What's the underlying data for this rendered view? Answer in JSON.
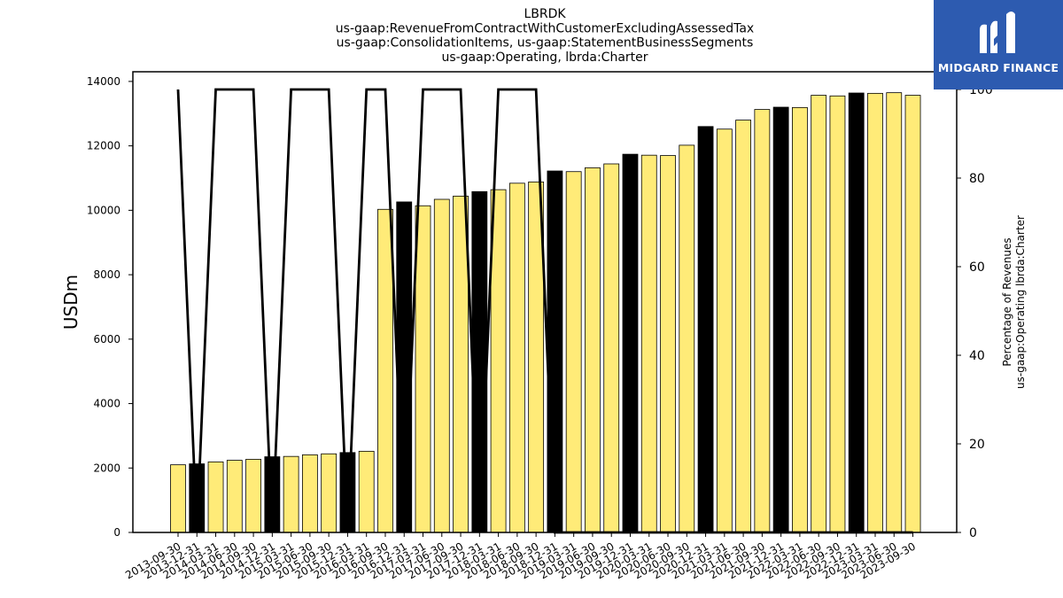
{
  "chart_data": {
    "type": "bar",
    "title_lines": [
      "LBRDK",
      "us-gaap:RevenueFromContractWithCustomerExcludingAssessedTax",
      "us-gaap:ConsolidationItems, us-gaap:StatementBusinessSegments",
      "us-gaap:Operating, lbrda:Charter"
    ],
    "ylabel": "USDm",
    "ylabel_right_lines": [
      "Percentage of Revenues",
      "us-gaap:Operating lbrda:Charter"
    ],
    "ylim": [
      0,
      14300
    ],
    "yticks": [
      "0",
      "2000",
      "4000",
      "6000",
      "8000",
      "10000",
      "12000",
      "14000"
    ],
    "y2lim": [
      0,
      104
    ],
    "y2ticks": [
      "0",
      "20",
      "40",
      "60",
      "80",
      "100"
    ],
    "categories": [
      "2013-09-30",
      "2013-12-31",
      "2014-03-31",
      "2014-06-30",
      "2014-09-30",
      "2014-12-31",
      "2015-03-31",
      "2015-06-30",
      "2015-09-30",
      "2015-12-31",
      "2016-03-31",
      "2016-09-30",
      "2016-12-31",
      "2017-03-31",
      "2017-06-30",
      "2017-09-30",
      "2017-12-31",
      "2018-03-31",
      "2018-06-30",
      "2018-09-30",
      "2018-12-31",
      "2019-03-31",
      "2019-06-30",
      "2019-09-30",
      "2019-12-31",
      "2020-03-31",
      "2020-06-30",
      "2020-09-30",
      "2020-12-31",
      "2021-03-31",
      "2021-06-30",
      "2021-09-30",
      "2021-12-31",
      "2022-03-31",
      "2022-06-30",
      "2022-09-30",
      "2022-12-31",
      "2023-03-31",
      "2023-06-30",
      "2023-09-30"
    ],
    "series": [
      {
        "kind": "bar",
        "values": [
          2100,
          2130,
          2190,
          2240,
          2270,
          2350,
          2360,
          2410,
          2440,
          2480,
          2520,
          10030,
          10260,
          10140,
          10340,
          10440,
          10580,
          10640,
          10840,
          10880,
          11220,
          11200,
          11320,
          11440,
          11740,
          11710,
          11700,
          12020,
          12600,
          12520,
          12800,
          13130,
          13200,
          13190,
          13570,
          13550,
          13640,
          13630,
          13650,
          13570
        ],
        "colors": [
          "#ffeb78",
          "#000000",
          "#ffeb78",
          "#ffeb78",
          "#ffeb78",
          "#000000",
          "#ffeb78",
          "#ffeb78",
          "#ffeb78",
          "#000000",
          "#ffeb78",
          "#ffeb78",
          "#000000",
          "#ffeb78",
          "#ffeb78",
          "#ffeb78",
          "#000000",
          "#ffeb78",
          "#ffeb78",
          "#ffeb78",
          "#000000",
          "#ffeb78",
          "#ffeb78",
          "#ffeb78",
          "#000000",
          "#ffeb78",
          "#ffeb78",
          "#ffeb78",
          "#000000",
          "#ffeb78",
          "#ffeb78",
          "#ffeb78",
          "#000000",
          "#ffeb78",
          "#ffeb78",
          "#ffeb78",
          "#000000",
          "#ffeb78",
          "#ffeb78",
          "#ffeb78"
        ]
      },
      {
        "kind": "line",
        "axis": "right",
        "values": [
          100,
          0,
          100,
          100,
          100,
          0,
          100,
          100,
          100,
          0,
          100,
          100,
          0,
          100,
          100,
          100,
          0,
          100,
          100,
          100,
          0,
          0,
          0,
          0,
          0,
          0,
          0,
          0,
          0,
          0,
          0,
          0,
          0,
          0,
          0,
          0,
          0,
          0,
          0,
          0
        ]
      }
    ],
    "grid": false,
    "legend": "none"
  },
  "logo": {
    "text": "MIDGARD FINANCE",
    "background": "#2d5bb0"
  }
}
